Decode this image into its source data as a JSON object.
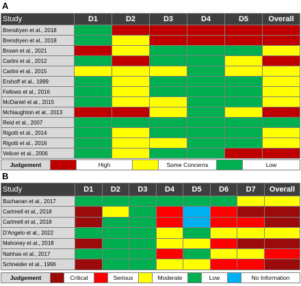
{
  "colors": {
    "high": "#c00000",
    "some_concerns": "#ffff00",
    "low": "#00b050",
    "critical": "#9b0b0b",
    "serious": "#ff0000",
    "moderate": "#ffff00",
    "no_information": "#00b0f0"
  },
  "chart_data": [
    {
      "type": "table",
      "panel_label": "A",
      "columns": [
        "Study",
        "D1",
        "D2",
        "D3",
        "D4",
        "D5",
        "Overall"
      ],
      "rows": [
        {
          "study": "Brendryen et al., 2018",
          "ratings": [
            "low",
            "high",
            "high",
            "high",
            "high",
            "high"
          ]
        },
        {
          "study": "Brendryen et al., 2018",
          "ratings": [
            "low",
            "some_concerns",
            "high",
            "high",
            "high",
            "high"
          ]
        },
        {
          "study": "Brown et al., 2021",
          "ratings": [
            "high",
            "some_concerns",
            "low",
            "low",
            "low",
            "some_concerns"
          ]
        },
        {
          "study": "Carlini et al., 2012",
          "ratings": [
            "low",
            "high",
            "low",
            "low",
            "some_concerns",
            "high"
          ]
        },
        {
          "study": "Carlini et al., 2015",
          "ratings": [
            "some_concerns",
            "some_concerns",
            "some_concerns",
            "low",
            "some_concerns",
            "some_concerns"
          ]
        },
        {
          "study": "Ershoff et al., 1999",
          "ratings": [
            "low",
            "some_concerns",
            "low",
            "low",
            "low",
            "some_concerns"
          ]
        },
        {
          "study": "Fellows et al., 2016",
          "ratings": [
            "low",
            "some_concerns",
            "low",
            "low",
            "low",
            "some_concerns"
          ]
        },
        {
          "study": "McDaniel et al., 2015",
          "ratings": [
            "low",
            "some_concerns",
            "some_concerns",
            "low",
            "low",
            "some_concerns"
          ]
        },
        {
          "study": "McNaughton et al., 2013",
          "ratings": [
            "high",
            "high",
            "some_concerns",
            "low",
            "some_concerns",
            "high"
          ]
        },
        {
          "study": "Reid et al., 2007",
          "ratings": [
            "low",
            "low",
            "low",
            "low",
            "low",
            "low"
          ]
        },
        {
          "study": "Rigotti et al., 2014",
          "ratings": [
            "low",
            "some_concerns",
            "low",
            "low",
            "low",
            "some_concerns"
          ]
        },
        {
          "study": "Rigotti et al., 2016",
          "ratings": [
            "low",
            "some_concerns",
            "some_concerns",
            "low",
            "low",
            "some_concerns"
          ]
        },
        {
          "study": "Velicer et al., 2006",
          "ratings": [
            "low",
            "some_concerns",
            "low",
            "low",
            "high",
            "high"
          ]
        }
      ],
      "legend": {
        "title": "Judgement",
        "items": [
          {
            "key": "high",
            "label": "High"
          },
          {
            "key": "some_concerns",
            "label": "Some Concerns"
          },
          {
            "key": "low",
            "label": "Low"
          }
        ]
      }
    },
    {
      "type": "table",
      "panel_label": "B",
      "columns": [
        "Study",
        "D1",
        "D2",
        "D3",
        "D4",
        "D5",
        "D6",
        "D7",
        "Overall"
      ],
      "rows": [
        {
          "study": "Buchanan et al., 2017",
          "ratings": [
            "low",
            "low",
            "low",
            "low",
            "low",
            "low",
            "moderate",
            "moderate"
          ]
        },
        {
          "study": "Cartmell et al., 2018",
          "ratings": [
            "critical",
            "moderate",
            "low",
            "serious",
            "no_information",
            "serious",
            "critical",
            "critical"
          ]
        },
        {
          "study": "Cartmell et al., 2018",
          "ratings": [
            "critical",
            "low",
            "low",
            "serious",
            "no_information",
            "serious",
            "serious",
            "critical"
          ]
        },
        {
          "study": "D'Angelo et al., 2022",
          "ratings": [
            "low",
            "low",
            "low",
            "moderate",
            "low",
            "moderate",
            "moderate",
            "moderate"
          ]
        },
        {
          "study": "Mahoney et al., 2018",
          "ratings": [
            "critical",
            "low",
            "low",
            "moderate",
            "moderate",
            "serious",
            "critical",
            "critical"
          ]
        },
        {
          "study": "Nahhas et al., 2017",
          "ratings": [
            "low",
            "low",
            "low",
            "serious",
            "low",
            "moderate",
            "moderate",
            "serious"
          ]
        },
        {
          "study": "Schneider et al., 1996",
          "ratings": [
            "critical",
            "low",
            "low",
            "moderate",
            "moderate",
            "serious",
            "serious",
            "critical"
          ]
        }
      ],
      "legend": {
        "title": "Judgement",
        "items": [
          {
            "key": "critical",
            "label": "Critical"
          },
          {
            "key": "serious",
            "label": "Serious"
          },
          {
            "key": "moderate",
            "label": "Moderate"
          },
          {
            "key": "low",
            "label": "Low"
          },
          {
            "key": "no_information",
            "label": "No Information"
          }
        ]
      }
    }
  ]
}
